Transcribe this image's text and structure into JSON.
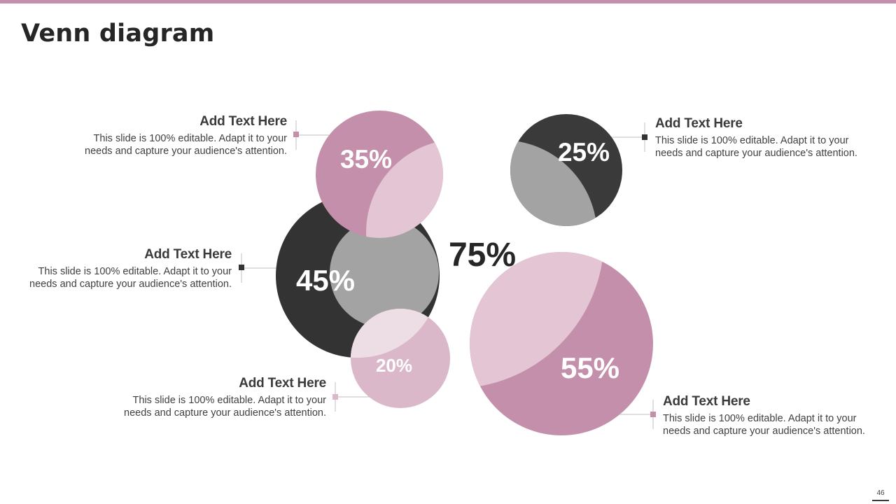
{
  "title": "Venn diagram",
  "colors": {
    "accent": "#c48faa",
    "dark": "#333333",
    "gray": "#a3a3a3",
    "light_pink": "#e3c5d3",
    "mid_pink": "#dbb8c9"
  },
  "diagram": {
    "center_label": "75%",
    "circles": [
      {
        "label": "35%"
      },
      {
        "label": "45%"
      },
      {
        "label": "20%"
      },
      {
        "label": "25%"
      },
      {
        "label": "55%"
      }
    ]
  },
  "callouts": [
    {
      "heading": "Add Text Here",
      "line1": "This slide is 100% editable. Adapt it to your",
      "line2": "needs and capture your audience's attention."
    },
    {
      "heading": "Add Text Here",
      "line1": "This slide is 100% editable. Adapt it to your",
      "line2": "needs and capture your audience's attention."
    },
    {
      "heading": "Add Text Here",
      "line1": "This slide is 100% editable. Adapt it to your",
      "line2": "needs and capture your audience's attention."
    },
    {
      "heading": "Add Text Here",
      "line1": "This slide is 100% editable. Adapt it to your",
      "line2": "needs and capture your audience's attention."
    },
    {
      "heading": "Add Text Here",
      "line1": "This slide is 100% editable. Adapt it to your",
      "line2": "needs and capture your audience's attention."
    }
  ],
  "page_number": "46"
}
